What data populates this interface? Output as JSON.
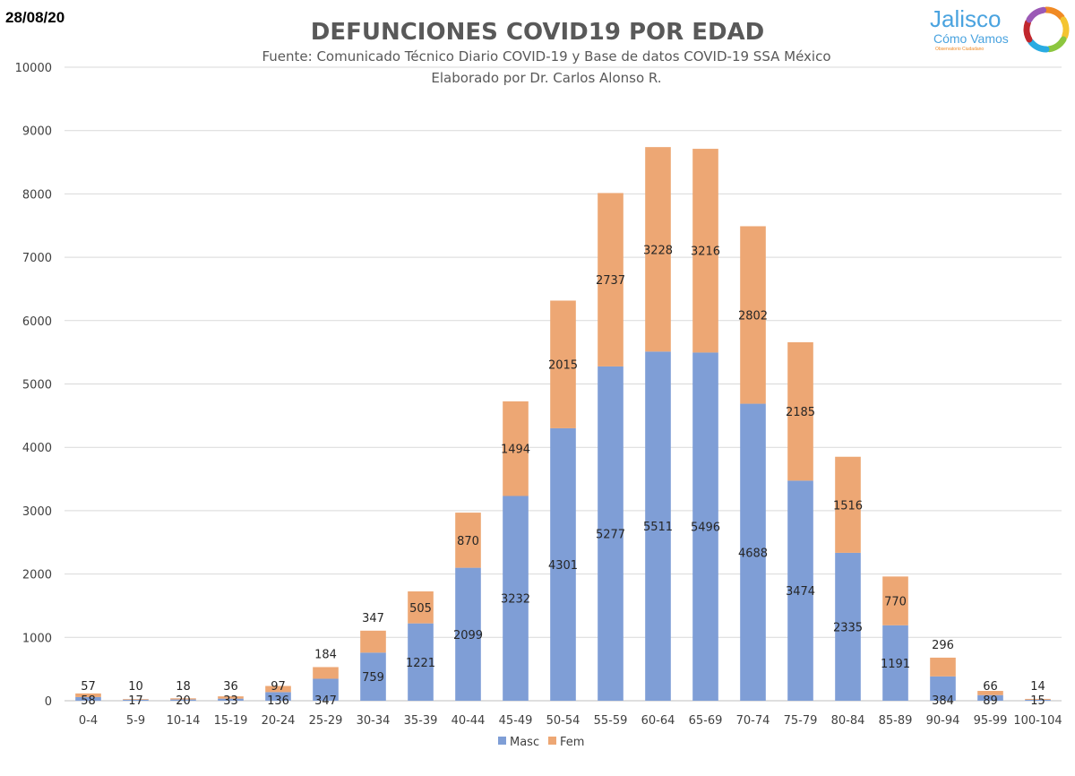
{
  "date": "28/08/20",
  "logo": {
    "name": "Jalisco",
    "tagline": "Cómo Vamos",
    "small_text": "Observatorio Ciudadano",
    "colors": [
      "#f08a24",
      "#f4c430",
      "#8cc63f",
      "#29abe2",
      "#c1272d",
      "#9b59b6"
    ],
    "name_color": "#4aa3df"
  },
  "chart_data": {
    "type": "bar",
    "stacked": true,
    "title": "DEFUNCIONES COVID19 POR EDAD",
    "subtitle": "Fuente: Comunicado Técnico Diario COVID-19 y Base de datos COVID-19 SSA México",
    "subtitle2": "Elaborado por Dr. Carlos Alonso R.",
    "categories": [
      "0-4",
      "5-9",
      "10-14",
      "15-19",
      "20-24",
      "25-29",
      "30-34",
      "35-39",
      "40-44",
      "45-49",
      "50-54",
      "55-59",
      "60-64",
      "65-69",
      "70-74",
      "75-79",
      "80-84",
      "85-89",
      "90-94",
      "95-99",
      "100-104"
    ],
    "series": [
      {
        "name": "Masc",
        "color": "#7f9ed6",
        "values": [
          58,
          17,
          20,
          33,
          136,
          347,
          759,
          1221,
          2099,
          3232,
          4301,
          5277,
          5511,
          5496,
          4688,
          3474,
          2335,
          1191,
          384,
          89,
          15
        ]
      },
      {
        "name": "Fem",
        "color": "#eda774",
        "values": [
          57,
          10,
          18,
          36,
          97,
          184,
          347,
          505,
          870,
          1494,
          2015,
          2737,
          3228,
          3216,
          2802,
          2185,
          1516,
          770,
          296,
          66,
          14
        ]
      }
    ],
    "yticks": [
      0,
      1000,
      2000,
      3000,
      4000,
      5000,
      6000,
      7000,
      8000,
      9000,
      10000
    ],
    "ylim": [
      0,
      10000
    ],
    "grid": true,
    "legend_position": "bottom"
  }
}
